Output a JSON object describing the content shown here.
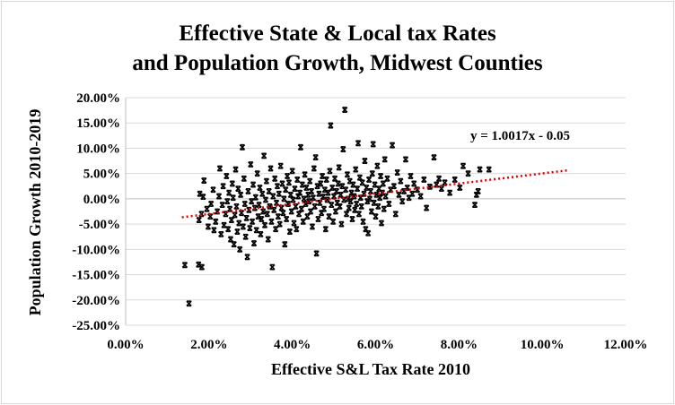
{
  "chart_data": {
    "type": "scatter",
    "title_line1": "Effective State & Local tax Rates",
    "title_line2": "and Population Growth, Midwest Counties",
    "xlabel": "Effective S&L Tax Rate 2010",
    "ylabel": "Population Growth 2010-2019",
    "xlim": [
      0,
      0.12
    ],
    "ylim": [
      -0.25,
      0.2
    ],
    "x_ticks": [
      0,
      0.02,
      0.04,
      0.06,
      0.08,
      0.1,
      0.12
    ],
    "x_tick_labels": [
      "0.00%",
      "2.00%",
      "4.00%",
      "6.00%",
      "8.00%",
      "10.00%",
      "12.00%"
    ],
    "y_ticks": [
      0.2,
      0.15,
      0.1,
      0.05,
      0.0,
      -0.05,
      -0.1,
      -0.15,
      -0.2,
      -0.25
    ],
    "y_tick_labels": [
      "20.00%",
      "15.00%",
      "10.00%",
      "5.00%",
      "0.00%",
      "-5.00%",
      "-10.00%",
      "-15.00%",
      "-20.00%",
      "-25.00%"
    ],
    "grid": "horizontal",
    "marker_color": "#000000",
    "trendline": {
      "label": "y = 1.0017x - 0.05",
      "slope": 1.0017,
      "intercept": -0.05,
      "x_range": [
        0.0135,
        0.1065
      ],
      "color": "#e00000",
      "style": "dotted"
    },
    "points": [
      [
        0.0142,
        -0.131
      ],
      [
        0.0152,
        -0.207
      ],
      [
        0.0175,
        -0.13
      ],
      [
        0.0183,
        -0.135
      ],
      [
        0.0176,
        -0.042
      ],
      [
        0.0182,
        -0.03
      ],
      [
        0.0178,
        0.01
      ],
      [
        0.0186,
        0.004
      ],
      [
        0.0188,
        0.036
      ],
      [
        0.0195,
        -0.02
      ],
      [
        0.0198,
        -0.055
      ],
      [
        0.0203,
        -0.035
      ],
      [
        0.0205,
        -0.01
      ],
      [
        0.021,
        0.018
      ],
      [
        0.0212,
        -0.062
      ],
      [
        0.0216,
        -0.045
      ],
      [
        0.022,
        -0.025
      ],
      [
        0.0224,
        0.005
      ],
      [
        0.0226,
        0.06
      ],
      [
        0.0229,
        -0.07
      ],
      [
        0.0232,
        -0.012
      ],
      [
        0.0234,
        0.025
      ],
      [
        0.0236,
        -0.052
      ],
      [
        0.024,
        -0.03
      ],
      [
        0.0242,
        0.045
      ],
      [
        0.0244,
        -0.005
      ],
      [
        0.0246,
        -0.06
      ],
      [
        0.0248,
        0.012
      ],
      [
        0.025,
        -0.02
      ],
      [
        0.0252,
        -0.08
      ],
      [
        0.0254,
        -0.042
      ],
      [
        0.0256,
        0.03
      ],
      [
        0.0258,
        0.002
      ],
      [
        0.026,
        -0.09
      ],
      [
        0.0262,
        -0.032
      ],
      [
        0.0264,
        0.058
      ],
      [
        0.0266,
        -0.015
      ],
      [
        0.0268,
        -0.065
      ],
      [
        0.027,
        0.02
      ],
      [
        0.0272,
        -0.048
      ],
      [
        0.0274,
        -0.1
      ],
      [
        0.0276,
        0.008
      ],
      [
        0.0278,
        -0.028
      ],
      [
        0.028,
        0.102
      ],
      [
        0.0282,
        -0.055
      ],
      [
        0.0284,
        0.04
      ],
      [
        0.0286,
        -0.01
      ],
      [
        0.0288,
        -0.075
      ],
      [
        0.029,
        -0.038
      ],
      [
        0.0292,
        -0.115
      ],
      [
        0.0294,
        0.015
      ],
      [
        0.0296,
        -0.022
      ],
      [
        0.0298,
        -0.058
      ],
      [
        0.03,
        0.068
      ],
      [
        0.0302,
        -0.005
      ],
      [
        0.0304,
        -0.045
      ],
      [
        0.0306,
        0.028
      ],
      [
        0.0308,
        -0.088
      ],
      [
        0.031,
        -0.018
      ],
      [
        0.0312,
        0.003
      ],
      [
        0.0314,
        -0.062
      ],
      [
        0.0316,
        0.05
      ],
      [
        0.0318,
        -0.035
      ],
      [
        0.032,
        -0.012
      ],
      [
        0.0322,
        0.022
      ],
      [
        0.0324,
        -0.07
      ],
      [
        0.0326,
        -0.04
      ],
      [
        0.0328,
        0.01
      ],
      [
        0.033,
        -0.025
      ],
      [
        0.0332,
        0.085
      ],
      [
        0.0334,
        -0.052
      ],
      [
        0.0336,
        -0.002
      ],
      [
        0.0338,
        0.035
      ],
      [
        0.034,
        -0.03
      ],
      [
        0.0342,
        -0.08
      ],
      [
        0.0344,
        0.015
      ],
      [
        0.0346,
        -0.015
      ],
      [
        0.0348,
        0.06
      ],
      [
        0.035,
        -0.045
      ],
      [
        0.0352,
        -0.135
      ],
      [
        0.0354,
        0.005
      ],
      [
        0.0356,
        -0.022
      ],
      [
        0.0358,
        0.04
      ],
      [
        0.036,
        -0.06
      ],
      [
        0.0362,
        -0.008
      ],
      [
        0.0364,
        0.025
      ],
      [
        0.0366,
        -0.035
      ],
      [
        0.0368,
        0.01
      ],
      [
        0.037,
        -0.05
      ],
      [
        0.0372,
        0.065
      ],
      [
        0.0374,
        -0.018
      ],
      [
        0.0376,
        0.03
      ],
      [
        0.0378,
        -0.028
      ],
      [
        0.038,
        0.0
      ],
      [
        0.0382,
        -0.09
      ],
      [
        0.0384,
        0.018
      ],
      [
        0.0386,
        -0.04
      ],
      [
        0.0388,
        0.045
      ],
      [
        0.039,
        -0.01
      ],
      [
        0.0392,
        0.032
      ],
      [
        0.0394,
        -0.065
      ],
      [
        0.0396,
        0.008
      ],
      [
        0.0398,
        -0.025
      ],
      [
        0.04,
        0.055
      ],
      [
        0.0402,
        -0.002
      ],
      [
        0.0404,
        -0.048
      ],
      [
        0.0406,
        0.02
      ],
      [
        0.0408,
        -0.015
      ],
      [
        0.041,
        -0.06
      ],
      [
        0.0412,
        0.038
      ],
      [
        0.0414,
        0.005
      ],
      [
        0.0416,
        -0.03
      ],
      [
        0.0418,
        0.012
      ],
      [
        0.042,
        0.102
      ],
      [
        0.0422,
        -0.02
      ],
      [
        0.0424,
        0.028
      ],
      [
        0.0426,
        -0.045
      ],
      [
        0.0428,
        0.0
      ],
      [
        0.043,
        0.048
      ],
      [
        0.0432,
        -0.01
      ],
      [
        0.0434,
        0.022
      ],
      [
        0.0436,
        -0.035
      ],
      [
        0.0438,
        0.008
      ],
      [
        0.044,
        -0.005
      ],
      [
        0.0442,
        0.035
      ],
      [
        0.0444,
        -0.025
      ],
      [
        0.0446,
        0.015
      ],
      [
        0.0448,
        -0.055
      ],
      [
        0.045,
        0.002
      ],
      [
        0.0452,
        0.06
      ],
      [
        0.0454,
        -0.015
      ],
      [
        0.0456,
        0.082
      ],
      [
        0.0458,
        -0.108
      ],
      [
        0.046,
        0.025
      ],
      [
        0.0462,
        -0.04
      ],
      [
        0.0464,
        0.01
      ],
      [
        0.0466,
        -0.008
      ],
      [
        0.0468,
        0.03
      ],
      [
        0.047,
        -0.028
      ],
      [
        0.0472,
        0.045
      ],
      [
        0.0474,
        0.004
      ],
      [
        0.0476,
        -0.02
      ],
      [
        0.0478,
        0.018
      ],
      [
        0.048,
        -0.06
      ],
      [
        0.0482,
        0.038
      ],
      [
        0.0484,
        -0.002
      ],
      [
        0.0486,
        0.012
      ],
      [
        0.0488,
        -0.035
      ],
      [
        0.049,
        0.055
      ],
      [
        0.0492,
        0.145
      ],
      [
        0.0494,
        -0.012
      ],
      [
        0.0496,
        0.022
      ],
      [
        0.0498,
        -0.045
      ],
      [
        0.05,
        0.005
      ],
      [
        0.0502,
        0.04
      ],
      [
        0.0504,
        -0.025
      ],
      [
        0.0506,
        0.015
      ],
      [
        0.0508,
        -0.008
      ],
      [
        0.051,
        0.03
      ],
      [
        0.0512,
        0.062
      ],
      [
        0.0514,
        -0.015
      ],
      [
        0.0516,
        0.008
      ],
      [
        0.0518,
        -0.05
      ],
      [
        0.052,
        0.025
      ],
      [
        0.0522,
        0.098
      ],
      [
        0.0524,
        -0.002
      ],
      [
        0.0526,
        0.176
      ],
      [
        0.0528,
        0.018
      ],
      [
        0.053,
        -0.03
      ],
      [
        0.0532,
        0.048
      ],
      [
        0.0534,
        0.0
      ],
      [
        0.0536,
        -0.018
      ],
      [
        0.0538,
        0.035
      ],
      [
        0.054,
        -0.005
      ],
      [
        0.0542,
        0.012
      ],
      [
        0.0544,
        -0.04
      ],
      [
        0.0546,
        0.028
      ],
      [
        0.0548,
        0.005
      ],
      [
        0.055,
        -0.022
      ],
      [
        0.0552,
        0.058
      ],
      [
        0.0554,
        -0.01
      ],
      [
        0.0556,
        0.02
      ],
      [
        0.0558,
        0.11
      ],
      [
        0.056,
        -0.03
      ],
      [
        0.0562,
        0.042
      ],
      [
        0.0564,
        0.002
      ],
      [
        0.0566,
        -0.015
      ],
      [
        0.0568,
        0.032
      ],
      [
        0.057,
        -0.045
      ],
      [
        0.0572,
        0.01
      ],
      [
        0.0574,
        0.075
      ],
      [
        0.0576,
        -0.06
      ],
      [
        0.0578,
        0.022
      ],
      [
        0.058,
        -0.005
      ],
      [
        0.0582,
        -0.068
      ],
      [
        0.0584,
        0.038
      ],
      [
        0.0586,
        0.0
      ],
      [
        0.0588,
        0.015
      ],
      [
        0.059,
        -0.025
      ],
      [
        0.0592,
        0.05
      ],
      [
        0.0594,
        0.108
      ],
      [
        0.0596,
        -0.008
      ],
      [
        0.0598,
        0.028
      ],
      [
        0.06,
        -0.035
      ],
      [
        0.0602,
        0.008
      ],
      [
        0.0604,
        0.065
      ],
      [
        0.0606,
        -0.015
      ],
      [
        0.0608,
        0.02
      ],
      [
        0.061,
        0.002
      ],
      [
        0.0612,
        0.045
      ],
      [
        0.0614,
        -0.048
      ],
      [
        0.0616,
        0.012
      ],
      [
        0.0618,
        0.03
      ],
      [
        0.062,
        -0.02
      ],
      [
        0.0622,
        0.078
      ],
      [
        0.0624,
        0.005
      ],
      [
        0.0628,
        0.04
      ],
      [
        0.0632,
        -0.01
      ],
      [
        0.0636,
        0.018
      ],
      [
        0.064,
        0.106
      ],
      [
        0.0644,
        0.025
      ],
      [
        0.0648,
        -0.03
      ],
      [
        0.0652,
        0.052
      ],
      [
        0.0656,
        0.008
      ],
      [
        0.066,
        0.035
      ],
      [
        0.0664,
        -0.005
      ],
      [
        0.0668,
        0.015
      ],
      [
        0.0672,
        0.078
      ],
      [
        0.0676,
        0.022
      ],
      [
        0.068,
        0.002
      ],
      [
        0.0684,
        0.045
      ],
      [
        0.0688,
        0.01
      ],
      [
        0.0692,
        0.03
      ],
      [
        0.07,
        0.018
      ],
      [
        0.0708,
        0.005
      ],
      [
        0.0716,
        0.038
      ],
      [
        0.0722,
        -0.018
      ],
      [
        0.073,
        0.024
      ],
      [
        0.074,
        0.082
      ],
      [
        0.0746,
        0.028
      ],
      [
        0.0752,
        0.04
      ],
      [
        0.0758,
        0.02
      ],
      [
        0.0766,
        0.032
      ],
      [
        0.0778,
        0.012
      ],
      [
        0.079,
        0.038
      ],
      [
        0.0802,
        0.022
      ],
      [
        0.081,
        0.065
      ],
      [
        0.0822,
        0.05
      ],
      [
        0.0838,
        -0.012
      ],
      [
        0.0842,
        0.008
      ],
      [
        0.0846,
        0.015
      ],
      [
        0.085,
        0.058
      ],
      [
        0.0872,
        0.058
      ]
    ]
  }
}
